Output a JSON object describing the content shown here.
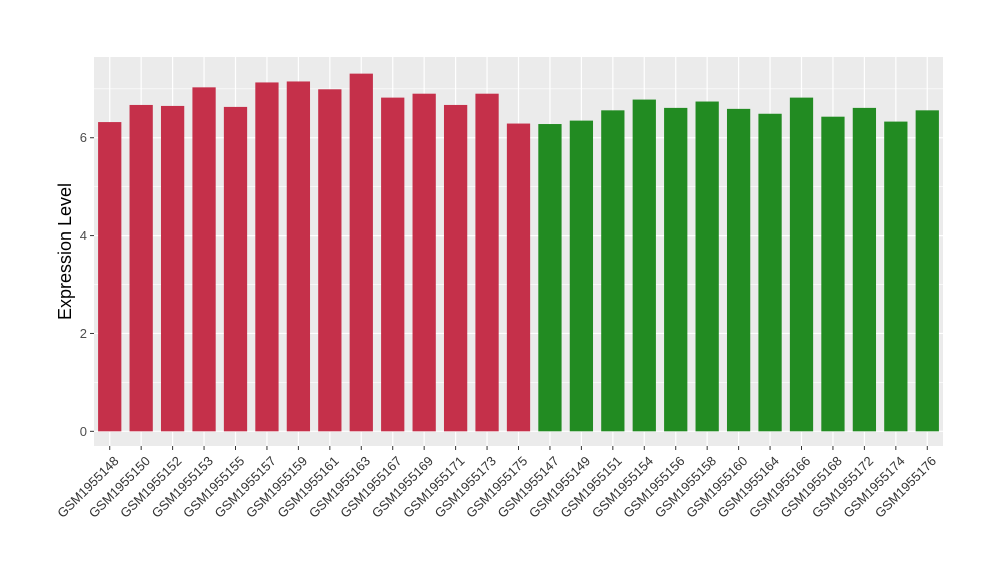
{
  "chart_data": {
    "type": "bar",
    "title": "",
    "xlabel": "",
    "ylabel": "Expression Level",
    "ylim": [
      -0.3,
      7.65
    ],
    "yticks": [
      0,
      2,
      4,
      6
    ],
    "grid": true,
    "legend": "none",
    "background_color": "#ebebeb",
    "grid_color": "#ffffff",
    "categories": [
      "GSM1955148",
      "GSM1955150",
      "GSM1955152",
      "GSM1955153",
      "GSM1955155",
      "GSM1955157",
      "GSM1955159",
      "GSM1955161",
      "GSM1955163",
      "GSM1955167",
      "GSM1955169",
      "GSM1955171",
      "GSM1955173",
      "GSM1955175",
      "GSM1955147",
      "GSM1955149",
      "GSM1955151",
      "GSM1955154",
      "GSM1955156",
      "GSM1955158",
      "GSM1955160",
      "GSM1955164",
      "GSM1955166",
      "GSM1955168",
      "GSM1955172",
      "GSM1955174",
      "GSM1955176"
    ],
    "values": [
      6.32,
      6.67,
      6.65,
      7.03,
      6.63,
      7.13,
      7.15,
      6.99,
      7.31,
      6.82,
      6.9,
      6.67,
      6.9,
      6.29,
      6.28,
      6.35,
      6.56,
      6.78,
      6.61,
      6.74,
      6.59,
      6.49,
      6.82,
      6.43,
      6.61,
      6.33,
      6.56
    ],
    "bar_colors": [
      "#c5304a",
      "#c5304a",
      "#c5304a",
      "#c5304a",
      "#c5304a",
      "#c5304a",
      "#c5304a",
      "#c5304a",
      "#c5304a",
      "#c5304a",
      "#c5304a",
      "#c5304a",
      "#c5304a",
      "#c5304a",
      "#228b22",
      "#228b22",
      "#228b22",
      "#228b22",
      "#228b22",
      "#228b22",
      "#228b22",
      "#228b22",
      "#228b22",
      "#228b22",
      "#228b22",
      "#228b22",
      "#228b22"
    ]
  }
}
